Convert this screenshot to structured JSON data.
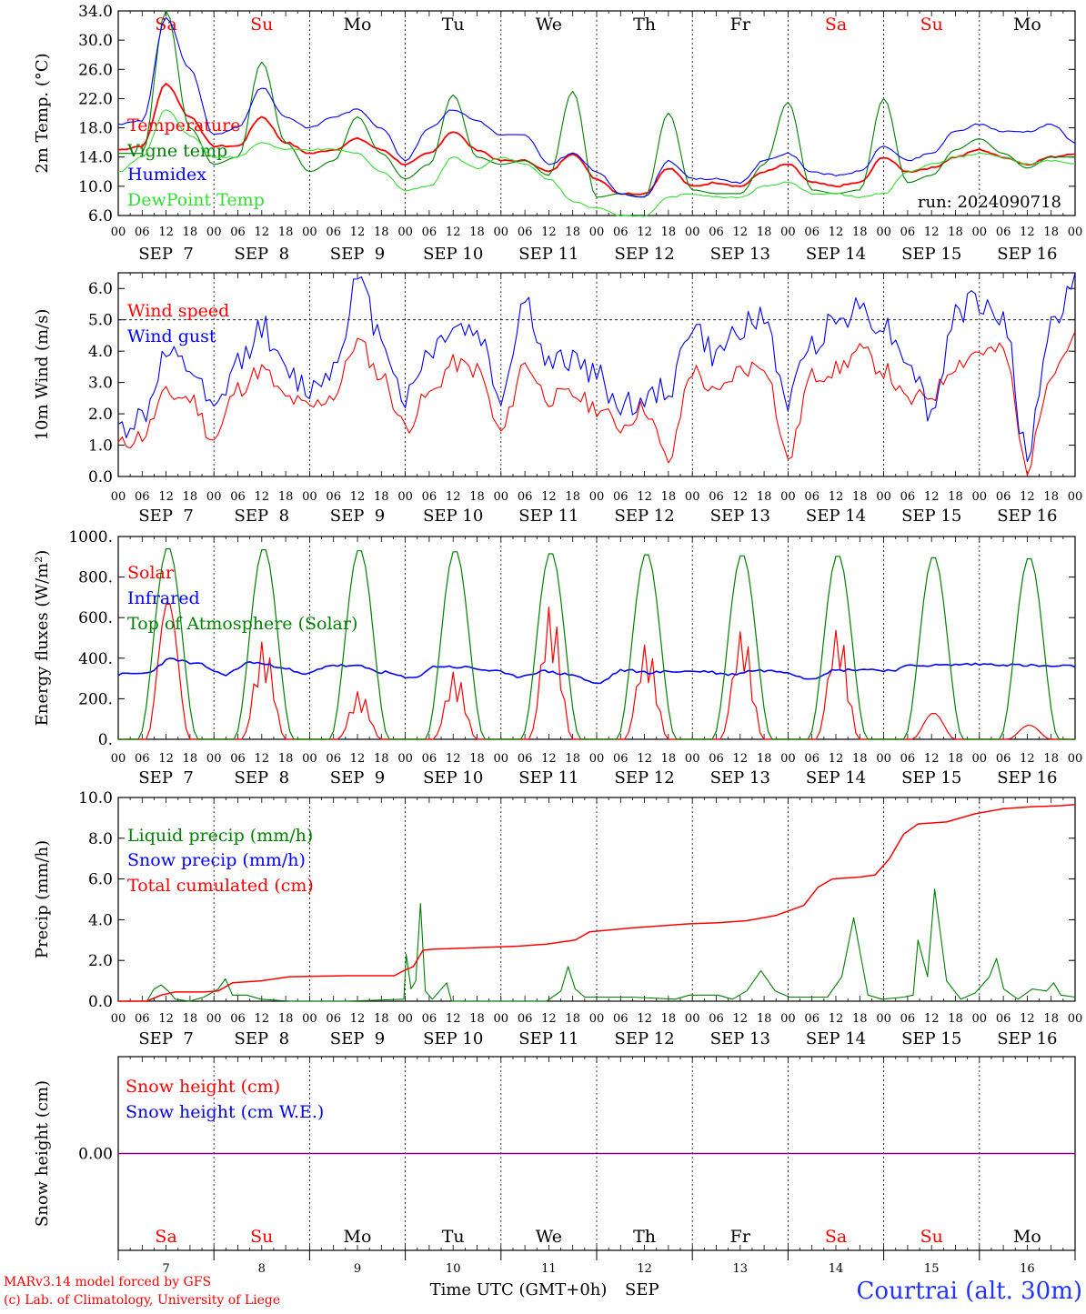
{
  "meta": {
    "run": "run: 2024090718",
    "footer_left_1": "MARv3.14 model forced by GFS",
    "footer_left_2": "(c) Lab. of Climatology, University of Liege",
    "footer_center": "Time UTC (GMT+0h)",
    "footer_month": "SEP",
    "footer_right": "Courtrai (alt. 30m)"
  },
  "colors": {
    "red": "#ff0000",
    "green": "#008000",
    "blue": "#0000ff",
    "lightgreen": "#33dd33",
    "purple": "#800080",
    "weekend": "#ff0000",
    "weekday": "#000000",
    "footer_blue": "#2233ff"
  },
  "days": [
    {
      "abbr": "Sa",
      "date": "SEP  7",
      "num": "7",
      "weekend": true
    },
    {
      "abbr": "Su",
      "date": "SEP  8",
      "num": "8",
      "weekend": true
    },
    {
      "abbr": "Mo",
      "date": "SEP  9",
      "num": "9",
      "weekend": false
    },
    {
      "abbr": "Tu",
      "date": "SEP 10",
      "num": "10",
      "weekend": false
    },
    {
      "abbr": "We",
      "date": "SEP 11",
      "num": "11",
      "weekend": false
    },
    {
      "abbr": "Th",
      "date": "SEP 12",
      "num": "12",
      "weekend": false
    },
    {
      "abbr": "Fr",
      "date": "SEP 13",
      "num": "13",
      "weekend": false
    },
    {
      "abbr": "Sa",
      "date": "SEP 14",
      "num": "14",
      "weekend": true
    },
    {
      "abbr": "Su",
      "date": "SEP 15",
      "num": "15",
      "weekend": true
    },
    {
      "abbr": "Mo",
      "date": "SEP 16",
      "num": "16",
      "weekend": false
    }
  ],
  "hour_labels": [
    "00",
    "06",
    "12",
    "18"
  ],
  "chart_data": [
    {
      "type": "line",
      "id": "temperature",
      "ylabel": "2m Temp. (°C)",
      "ylim": [
        6.0,
        34.0
      ],
      "yticks": [
        "6.0",
        "10.0",
        "14.0",
        "18.0",
        "22.0",
        "26.0",
        "30.0",
        "34.0"
      ],
      "ytick_values": [
        6,
        10,
        14,
        18,
        22,
        26,
        30,
        34
      ],
      "x_hours": [
        0,
        6,
        12,
        18,
        24,
        30,
        36,
        42,
        48,
        54,
        60,
        66,
        72,
        78,
        84,
        90,
        96,
        102,
        108,
        114,
        120,
        126,
        132,
        138,
        144,
        150,
        156,
        162,
        168,
        174,
        180,
        186,
        192,
        198,
        204,
        210,
        216,
        222,
        228,
        234,
        240
      ],
      "series": [
        {
          "name": "Temperature",
          "color": "red",
          "values": [
            15.0,
            15.5,
            24.0,
            19.5,
            15.5,
            15.5,
            19.5,
            16.0,
            14.5,
            15.0,
            16.5,
            15.0,
            13.0,
            14.5,
            17.5,
            15.0,
            13.5,
            13.5,
            12.0,
            14.5,
            11.0,
            9.0,
            9.0,
            12.5,
            10.0,
            10.5,
            10.0,
            12.0,
            13.0,
            10.5,
            10.0,
            10.5,
            14.0,
            12.0,
            12.5,
            14.0,
            15.0,
            14.0,
            13.0,
            14.0,
            14.5
          ]
        },
        {
          "name": "Vigne temp",
          "color": "green",
          "values": [
            14.5,
            14.5,
            34.0,
            18.0,
            13.0,
            14.0,
            27.0,
            16.0,
            12.0,
            13.5,
            19.5,
            14.5,
            11.0,
            13.0,
            22.5,
            14.0,
            13.0,
            13.5,
            11.5,
            23.0,
            8.5,
            9.0,
            8.5,
            20.0,
            9.5,
            9.0,
            9.0,
            13.0,
            21.5,
            9.5,
            9.0,
            9.5,
            22.0,
            10.5,
            11.5,
            15.0,
            16.5,
            14.5,
            12.5,
            14.0,
            14.0
          ]
        },
        {
          "name": "Humidex",
          "color": "blue",
          "values": [
            18.5,
            19.0,
            33.0,
            26.0,
            17.0,
            18.0,
            23.5,
            19.5,
            18.0,
            19.5,
            20.5,
            18.0,
            13.5,
            18.0,
            20.5,
            19.0,
            17.0,
            17.0,
            13.0,
            14.5,
            12.0,
            9.0,
            8.5,
            13.5,
            11.0,
            11.0,
            10.5,
            13.5,
            14.5,
            12.0,
            11.5,
            12.0,
            15.5,
            13.5,
            14.5,
            17.5,
            18.5,
            17.5,
            17.5,
            18.5,
            16.0
          ]
        },
        {
          "name": "DewPoint Temp",
          "color": "lightgreen",
          "values": [
            12.0,
            14.0,
            20.5,
            17.0,
            14.0,
            14.0,
            16.0,
            15.0,
            15.0,
            15.0,
            14.5,
            12.0,
            9.5,
            10.0,
            14.0,
            12.5,
            14.0,
            13.0,
            11.0,
            8.0,
            7.0,
            6.0,
            6.0,
            8.5,
            9.0,
            8.5,
            8.5,
            10.0,
            10.5,
            9.0,
            9.0,
            8.5,
            9.0,
            12.0,
            13.0,
            14.0,
            14.5,
            14.0,
            13.0,
            13.5,
            13.0
          ]
        }
      ]
    },
    {
      "type": "line",
      "id": "wind",
      "ylabel": "10m Wind (m/s)",
      "ylim": [
        0.0,
        6.5
      ],
      "yticks": [
        "0.0",
        "1.0",
        "2.0",
        "3.0",
        "4.0",
        "5.0",
        "6.0"
      ],
      "ytick_values": [
        0,
        1,
        2,
        3,
        4,
        5,
        6
      ],
      "reference_line": 5.0,
      "x_hours": [
        0,
        6,
        12,
        18,
        24,
        30,
        36,
        42,
        48,
        54,
        60,
        66,
        72,
        78,
        84,
        90,
        96,
        102,
        108,
        114,
        120,
        126,
        132,
        138,
        144,
        150,
        156,
        162,
        168,
        174,
        180,
        186,
        192,
        198,
        204,
        210,
        216,
        222,
        228,
        234,
        240
      ],
      "series": [
        {
          "name": "Wind speed",
          "color": "red",
          "values": [
            1.0,
            1.3,
            2.6,
            2.5,
            1.2,
            2.8,
            3.4,
            2.5,
            2.2,
            2.6,
            4.3,
            3.2,
            1.6,
            2.6,
            3.6,
            3.4,
            1.4,
            3.6,
            2.5,
            2.6,
            2.2,
            1.6,
            2.2,
            0.5,
            3.4,
            2.6,
            3.4,
            3.6,
            0.6,
            3.2,
            3.4,
            4.0,
            3.4,
            2.4,
            2.6,
            3.6,
            4.0,
            4.0,
            0.3,
            3.4,
            4.4
          ]
        },
        {
          "name": "Wind gust",
          "color": "blue",
          "values": [
            1.5,
            1.9,
            3.8,
            3.4,
            2.0,
            3.6,
            4.8,
            3.3,
            2.8,
            3.5,
            6.2,
            4.5,
            2.5,
            4.0,
            4.8,
            4.6,
            2.6,
            5.6,
            3.5,
            3.8,
            3.2,
            2.3,
            2.4,
            2.8,
            4.8,
            3.8,
            4.8,
            5.0,
            2.4,
            4.3,
            5.0,
            5.4,
            4.8,
            3.8,
            2.0,
            5.2,
            5.6,
            5.0,
            0.7,
            4.8,
            6.2
          ]
        }
      ]
    },
    {
      "type": "line",
      "id": "energy",
      "ylabel": "Energy fluxes (W/m²)",
      "ylim": [
        0.0,
        1000.0
      ],
      "yticks": [
        "0.",
        "200.",
        "400.",
        "600.",
        "800.",
        "1000."
      ],
      "ytick_values": [
        0,
        200,
        400,
        600,
        800,
        1000
      ],
      "series": [
        {
          "name": "Solar",
          "color": "red",
          "peaks": [
            680,
            490,
            240,
            340,
            670,
            480,
            550,
            560,
            130,
            70
          ]
        },
        {
          "name": "Infrared",
          "color": "blue",
          "values": [
            320,
            325,
            395,
            370,
            320,
            380,
            360,
            320,
            365,
            360,
            330,
            300,
            360,
            355,
            340,
            310,
            335,
            320,
            275,
            340,
            330,
            335,
            335,
            320,
            340,
            335,
            300,
            340,
            345,
            340,
            365,
            365,
            370,
            370,
            365,
            360,
            360
          ]
        },
        {
          "name": "Top of Atmosphere (Solar)",
          "color": "green",
          "peaks": [
            950,
            945,
            940,
            935,
            925,
            920,
            915,
            912,
            905,
            900
          ]
        }
      ]
    },
    {
      "type": "line",
      "id": "precip",
      "ylabel": "Precip (mm/h)",
      "ylim": [
        0.0,
        10.0
      ],
      "yticks": [
        "0.0",
        "2.0",
        "4.0",
        "6.0",
        "8.0",
        "10.0"
      ],
      "ytick_values": [
        0,
        2,
        4,
        6,
        8,
        10
      ],
      "series": [
        {
          "name": "Liquid precip (mm/h)",
          "color": "green",
          "points": [
            [
              0,
              0
            ],
            [
              12,
              0
            ],
            [
              15,
              0.6
            ],
            [
              18,
              0.8
            ],
            [
              21,
              0.5
            ],
            [
              24,
              0.1
            ],
            [
              30,
              0
            ],
            [
              36,
              0.2
            ],
            [
              42,
              0.6
            ],
            [
              45,
              1.1
            ],
            [
              48,
              0.3
            ],
            [
              54,
              0.3
            ],
            [
              60,
              0.1
            ],
            [
              72,
              0
            ],
            [
              96,
              0
            ],
            [
              120,
              0.1
            ],
            [
              121,
              2.3
            ],
            [
              123,
              0.6
            ],
            [
              125,
              1.0
            ],
            [
              127,
              4.8
            ],
            [
              129,
              0.5
            ],
            [
              132,
              0.1
            ],
            [
              138,
              0.9
            ],
            [
              140,
              0
            ],
            [
              168,
              0
            ],
            [
              180,
              0
            ],
            [
              186,
              0.5
            ],
            [
              189,
              1.7
            ],
            [
              192,
              0.6
            ],
            [
              196,
              0.2
            ],
            [
              216,
              0.2
            ],
            [
              234,
              0.1
            ],
            [
              240,
              0.3
            ],
            [
              252,
              0.3
            ],
            [
              258,
              0.1
            ],
            [
              264,
              0.5
            ],
            [
              270,
              1.5
            ],
            [
              276,
              0.5
            ],
            [
              282,
              0.2
            ],
            [
              288,
              0.2
            ],
            [
              298,
              0.2
            ],
            [
              304,
              1.2
            ],
            [
              309,
              4.1
            ],
            [
              315,
              0.3
            ],
            [
              321,
              0.1
            ],
            [
              330,
              0.2
            ],
            [
              334,
              0.3
            ],
            [
              336,
              3.0
            ],
            [
              340,
              1.2
            ],
            [
              343,
              5.5
            ],
            [
              348,
              1.0
            ],
            [
              354,
              0.1
            ],
            [
              360,
              0.4
            ],
            [
              366,
              1.2
            ],
            [
              369,
              2.1
            ],
            [
              372,
              0.6
            ],
            [
              378,
              0.1
            ],
            [
              384,
              0.6
            ],
            [
              390,
              0.5
            ],
            [
              393,
              0.9
            ],
            [
              396,
              0.3
            ],
            [
              402,
              0.2
            ]
          ]
        },
        {
          "name": "Snow precip (mm/h)",
          "color": "blue",
          "points": []
        },
        {
          "name": "Total cumulated (cm)",
          "color": "red",
          "points": [
            [
              0,
              0
            ],
            [
              12,
              0
            ],
            [
              18,
              0.3
            ],
            [
              24,
              0.45
            ],
            [
              36,
              0.45
            ],
            [
              42,
              0.5
            ],
            [
              48,
              0.9
            ],
            [
              60,
              1.0
            ],
            [
              72,
              1.2
            ],
            [
              96,
              1.25
            ],
            [
              116,
              1.25
            ],
            [
              120,
              1.5
            ],
            [
              124,
              1.7
            ],
            [
              128,
              2.5
            ],
            [
              132,
              2.55
            ],
            [
              144,
              2.6
            ],
            [
              168,
              2.7
            ],
            [
              180,
              2.8
            ],
            [
              192,
              3.0
            ],
            [
              198,
              3.4
            ],
            [
              216,
              3.6
            ],
            [
              240,
              3.8
            ],
            [
              252,
              3.85
            ],
            [
              264,
              3.95
            ],
            [
              276,
              4.2
            ],
            [
              288,
              4.7
            ],
            [
              294,
              5.6
            ],
            [
              300,
              6.0
            ],
            [
              312,
              6.1
            ],
            [
              318,
              6.2
            ],
            [
              324,
              7.0
            ],
            [
              330,
              8.2
            ],
            [
              336,
              8.7
            ],
            [
              348,
              8.8
            ],
            [
              360,
              9.2
            ],
            [
              372,
              9.45
            ],
            [
              384,
              9.55
            ],
            [
              396,
              9.6
            ],
            [
              402,
              9.65
            ]
          ]
        }
      ]
    },
    {
      "type": "line",
      "id": "snow",
      "ylabel": "Snow height (cm)",
      "ylim": [
        -1.0,
        1.0
      ],
      "yticks": [
        "0.00"
      ],
      "ytick_values": [
        0
      ],
      "series": [
        {
          "name": "Snow height (cm)",
          "color": "red",
          "values": [
            0,
            0
          ]
        },
        {
          "name": "Snow height (cm W.E.)",
          "color": "blue",
          "values": [
            0,
            0
          ]
        }
      ]
    }
  ]
}
